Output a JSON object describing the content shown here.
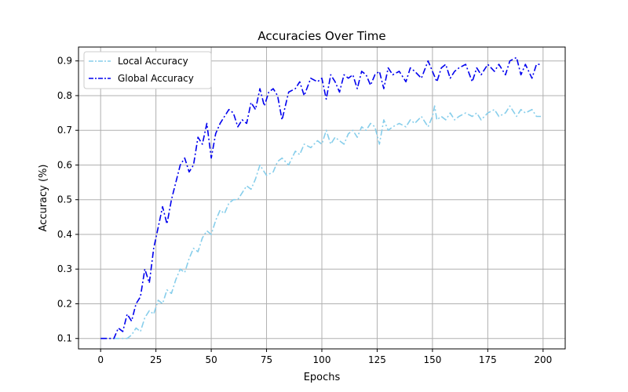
{
  "chart_data": {
    "type": "line",
    "title": "Accuracies Over Time",
    "xlabel": "Epochs",
    "ylabel": "Accuracy (%)",
    "xlim": [
      -10,
      210
    ],
    "ylim": [
      0.07,
      0.94
    ],
    "xticks": [
      0,
      25,
      50,
      75,
      100,
      125,
      150,
      175,
      200
    ],
    "yticks": [
      0.1,
      0.2,
      0.3,
      0.4,
      0.5,
      0.6,
      0.7,
      0.8,
      0.9
    ],
    "grid": true,
    "legend_position": "upper left",
    "line_style": "dash-dot",
    "series": [
      {
        "name": "Local Accuracy",
        "color": "#87ceeb",
        "x": [
          0,
          5,
          8,
          10,
          12,
          14,
          16,
          18,
          20,
          22,
          24,
          26,
          28,
          30,
          32,
          34,
          36,
          38,
          40,
          42,
          44,
          46,
          48,
          50,
          52,
          54,
          56,
          58,
          60,
          62,
          64,
          66,
          68,
          70,
          72,
          75,
          78,
          80,
          82,
          85,
          88,
          90,
          92,
          95,
          98,
          100,
          102,
          104,
          106,
          108,
          110,
          112,
          114,
          116,
          118,
          120,
          122,
          124,
          126,
          128,
          130,
          132,
          135,
          138,
          140,
          142,
          145,
          148,
          150,
          151,
          152,
          154,
          156,
          158,
          160,
          162,
          165,
          168,
          170,
          172,
          175,
          178,
          180,
          183,
          185,
          188,
          190,
          192,
          195,
          197,
          199
        ],
        "y": [
          0.1,
          0.1,
          0.1,
          0.1,
          0.1,
          0.11,
          0.13,
          0.12,
          0.16,
          0.18,
          0.17,
          0.21,
          0.2,
          0.24,
          0.23,
          0.27,
          0.3,
          0.29,
          0.33,
          0.36,
          0.35,
          0.39,
          0.41,
          0.4,
          0.44,
          0.47,
          0.46,
          0.49,
          0.5,
          0.5,
          0.52,
          0.54,
          0.53,
          0.56,
          0.6,
          0.57,
          0.58,
          0.61,
          0.62,
          0.6,
          0.64,
          0.63,
          0.66,
          0.65,
          0.67,
          0.66,
          0.7,
          0.66,
          0.68,
          0.67,
          0.66,
          0.69,
          0.7,
          0.68,
          0.71,
          0.7,
          0.72,
          0.71,
          0.66,
          0.73,
          0.7,
          0.71,
          0.72,
          0.71,
          0.73,
          0.72,
          0.74,
          0.71,
          0.74,
          0.77,
          0.73,
          0.74,
          0.73,
          0.75,
          0.73,
          0.74,
          0.75,
          0.74,
          0.75,
          0.73,
          0.75,
          0.76,
          0.74,
          0.75,
          0.77,
          0.74,
          0.76,
          0.75,
          0.76,
          0.74,
          0.74
        ]
      },
      {
        "name": "Global Accuracy",
        "color": "#0000ee",
        "x": [
          0,
          4,
          6,
          8,
          10,
          12,
          14,
          16,
          18,
          20,
          22,
          24,
          26,
          28,
          30,
          32,
          34,
          36,
          38,
          40,
          42,
          44,
          46,
          48,
          50,
          52,
          54,
          56,
          58,
          60,
          62,
          64,
          66,
          68,
          70,
          72,
          74,
          76,
          78,
          80,
          82,
          85,
          88,
          90,
          92,
          95,
          98,
          100,
          102,
          104,
          106,
          108,
          110,
          112,
          114,
          116,
          118,
          120,
          122,
          124,
          126,
          128,
          130,
          132,
          135,
          138,
          140,
          142,
          145,
          148,
          150,
          152,
          154,
          156,
          158,
          160,
          162,
          165,
          168,
          170,
          172,
          175,
          178,
          180,
          183,
          185,
          188,
          190,
          192,
          195,
          197,
          199
        ],
        "y": [
          0.1,
          0.1,
          0.1,
          0.13,
          0.12,
          0.17,
          0.15,
          0.2,
          0.22,
          0.3,
          0.26,
          0.36,
          0.42,
          0.48,
          0.43,
          0.5,
          0.55,
          0.6,
          0.62,
          0.58,
          0.6,
          0.68,
          0.66,
          0.72,
          0.62,
          0.69,
          0.72,
          0.74,
          0.76,
          0.75,
          0.71,
          0.73,
          0.72,
          0.78,
          0.76,
          0.82,
          0.77,
          0.81,
          0.82,
          0.8,
          0.73,
          0.81,
          0.82,
          0.84,
          0.8,
          0.85,
          0.84,
          0.85,
          0.79,
          0.86,
          0.84,
          0.81,
          0.86,
          0.85,
          0.86,
          0.82,
          0.87,
          0.86,
          0.83,
          0.86,
          0.87,
          0.82,
          0.88,
          0.86,
          0.87,
          0.84,
          0.88,
          0.87,
          0.85,
          0.9,
          0.87,
          0.84,
          0.88,
          0.89,
          0.85,
          0.87,
          0.88,
          0.89,
          0.84,
          0.88,
          0.86,
          0.89,
          0.87,
          0.89,
          0.86,
          0.9,
          0.91,
          0.86,
          0.89,
          0.85,
          0.89,
          0.89
        ]
      }
    ]
  }
}
